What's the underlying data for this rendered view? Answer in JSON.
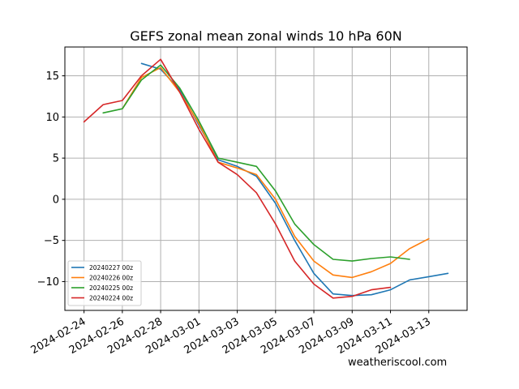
{
  "chart_data": {
    "type": "line",
    "title": "GEFS zonal mean zonal winds 10 hPa 60N",
    "credit": "weatheriscool.com",
    "xlabel": "",
    "ylabel": "",
    "xlim": [
      "2024-02-23",
      "2024-03-15"
    ],
    "ylim": [
      -13.5,
      18.5
    ],
    "grid": true,
    "legend_position": "lower-left",
    "x_tick_labels": [
      "2024-02-24",
      "2024-02-26",
      "2024-02-28",
      "2024-03-01",
      "2024-03-03",
      "2024-03-05",
      "2024-03-07",
      "2024-03-09",
      "2024-03-11",
      "2024-03-13"
    ],
    "y_ticks": [
      15,
      10,
      5,
      0,
      -5,
      -10
    ],
    "y_tick_labels": [
      "15",
      "10",
      "5",
      "0",
      "−5",
      "−10"
    ],
    "series": [
      {
        "name": "20240227 00z",
        "color": "#1f77b4",
        "points": [
          [
            "2024-02-27",
            16.5
          ],
          [
            "2024-02-28",
            15.8
          ],
          [
            "2024-02-29",
            13.3
          ],
          [
            "2024-03-01",
            9.0
          ],
          [
            "2024-03-02",
            4.8
          ],
          [
            "2024-03-03",
            4.0
          ],
          [
            "2024-03-04",
            2.8
          ],
          [
            "2024-03-05",
            -0.5
          ],
          [
            "2024-03-06",
            -5.0
          ],
          [
            "2024-03-07",
            -9.0
          ],
          [
            "2024-03-08",
            -11.5
          ],
          [
            "2024-03-09",
            -11.7
          ],
          [
            "2024-03-10",
            -11.6
          ],
          [
            "2024-03-11",
            -11.0
          ],
          [
            "2024-03-12",
            -9.8
          ],
          [
            "2024-03-13",
            -9.4
          ],
          [
            "2024-03-14",
            -9.0
          ]
        ]
      },
      {
        "name": "20240226 00z",
        "color": "#ff7f0e",
        "points": [
          [
            "2024-02-26",
            11.0
          ],
          [
            "2024-02-27",
            14.8
          ],
          [
            "2024-02-28",
            16.0
          ],
          [
            "2024-02-29",
            13.0
          ],
          [
            "2024-03-01",
            9.2
          ],
          [
            "2024-03-02",
            4.5
          ],
          [
            "2024-03-03",
            3.8
          ],
          [
            "2024-03-04",
            3.0
          ],
          [
            "2024-03-05",
            0.0
          ],
          [
            "2024-03-06",
            -4.5
          ],
          [
            "2024-03-07",
            -7.5
          ],
          [
            "2024-03-08",
            -9.2
          ],
          [
            "2024-03-09",
            -9.5
          ],
          [
            "2024-03-10",
            -8.8
          ],
          [
            "2024-03-11",
            -7.8
          ],
          [
            "2024-03-12",
            -6.0
          ],
          [
            "2024-03-13",
            -4.8
          ]
        ]
      },
      {
        "name": "20240225 00z",
        "color": "#2ca02c",
        "points": [
          [
            "2024-02-25",
            10.5
          ],
          [
            "2024-02-26",
            11.0
          ],
          [
            "2024-02-27",
            14.5
          ],
          [
            "2024-02-28",
            16.3
          ],
          [
            "2024-02-29",
            13.5
          ],
          [
            "2024-03-01",
            9.5
          ],
          [
            "2024-03-02",
            5.0
          ],
          [
            "2024-03-03",
            4.5
          ],
          [
            "2024-03-04",
            4.0
          ],
          [
            "2024-03-05",
            1.0
          ],
          [
            "2024-03-06",
            -3.0
          ],
          [
            "2024-03-07",
            -5.5
          ],
          [
            "2024-03-08",
            -7.3
          ],
          [
            "2024-03-09",
            -7.5
          ],
          [
            "2024-03-10",
            -7.2
          ],
          [
            "2024-03-11",
            -7.0
          ],
          [
            "2024-03-12",
            -7.3
          ]
        ]
      },
      {
        "name": "20240224 00z",
        "color": "#d62728",
        "points": [
          [
            "2024-02-24",
            9.4
          ],
          [
            "2024-02-25",
            11.5
          ],
          [
            "2024-02-26",
            12.0
          ],
          [
            "2024-02-27",
            15.0
          ],
          [
            "2024-02-28",
            17.0
          ],
          [
            "2024-02-29",
            13.0
          ],
          [
            "2024-03-01",
            8.5
          ],
          [
            "2024-03-02",
            4.5
          ],
          [
            "2024-03-03",
            3.0
          ],
          [
            "2024-03-04",
            0.8
          ],
          [
            "2024-03-05",
            -3.0
          ],
          [
            "2024-03-06",
            -7.5
          ],
          [
            "2024-03-07",
            -10.3
          ],
          [
            "2024-03-08",
            -12.0
          ],
          [
            "2024-03-09",
            -11.8
          ],
          [
            "2024-03-10",
            -11.0
          ],
          [
            "2024-03-11",
            -10.7
          ]
        ]
      }
    ]
  }
}
